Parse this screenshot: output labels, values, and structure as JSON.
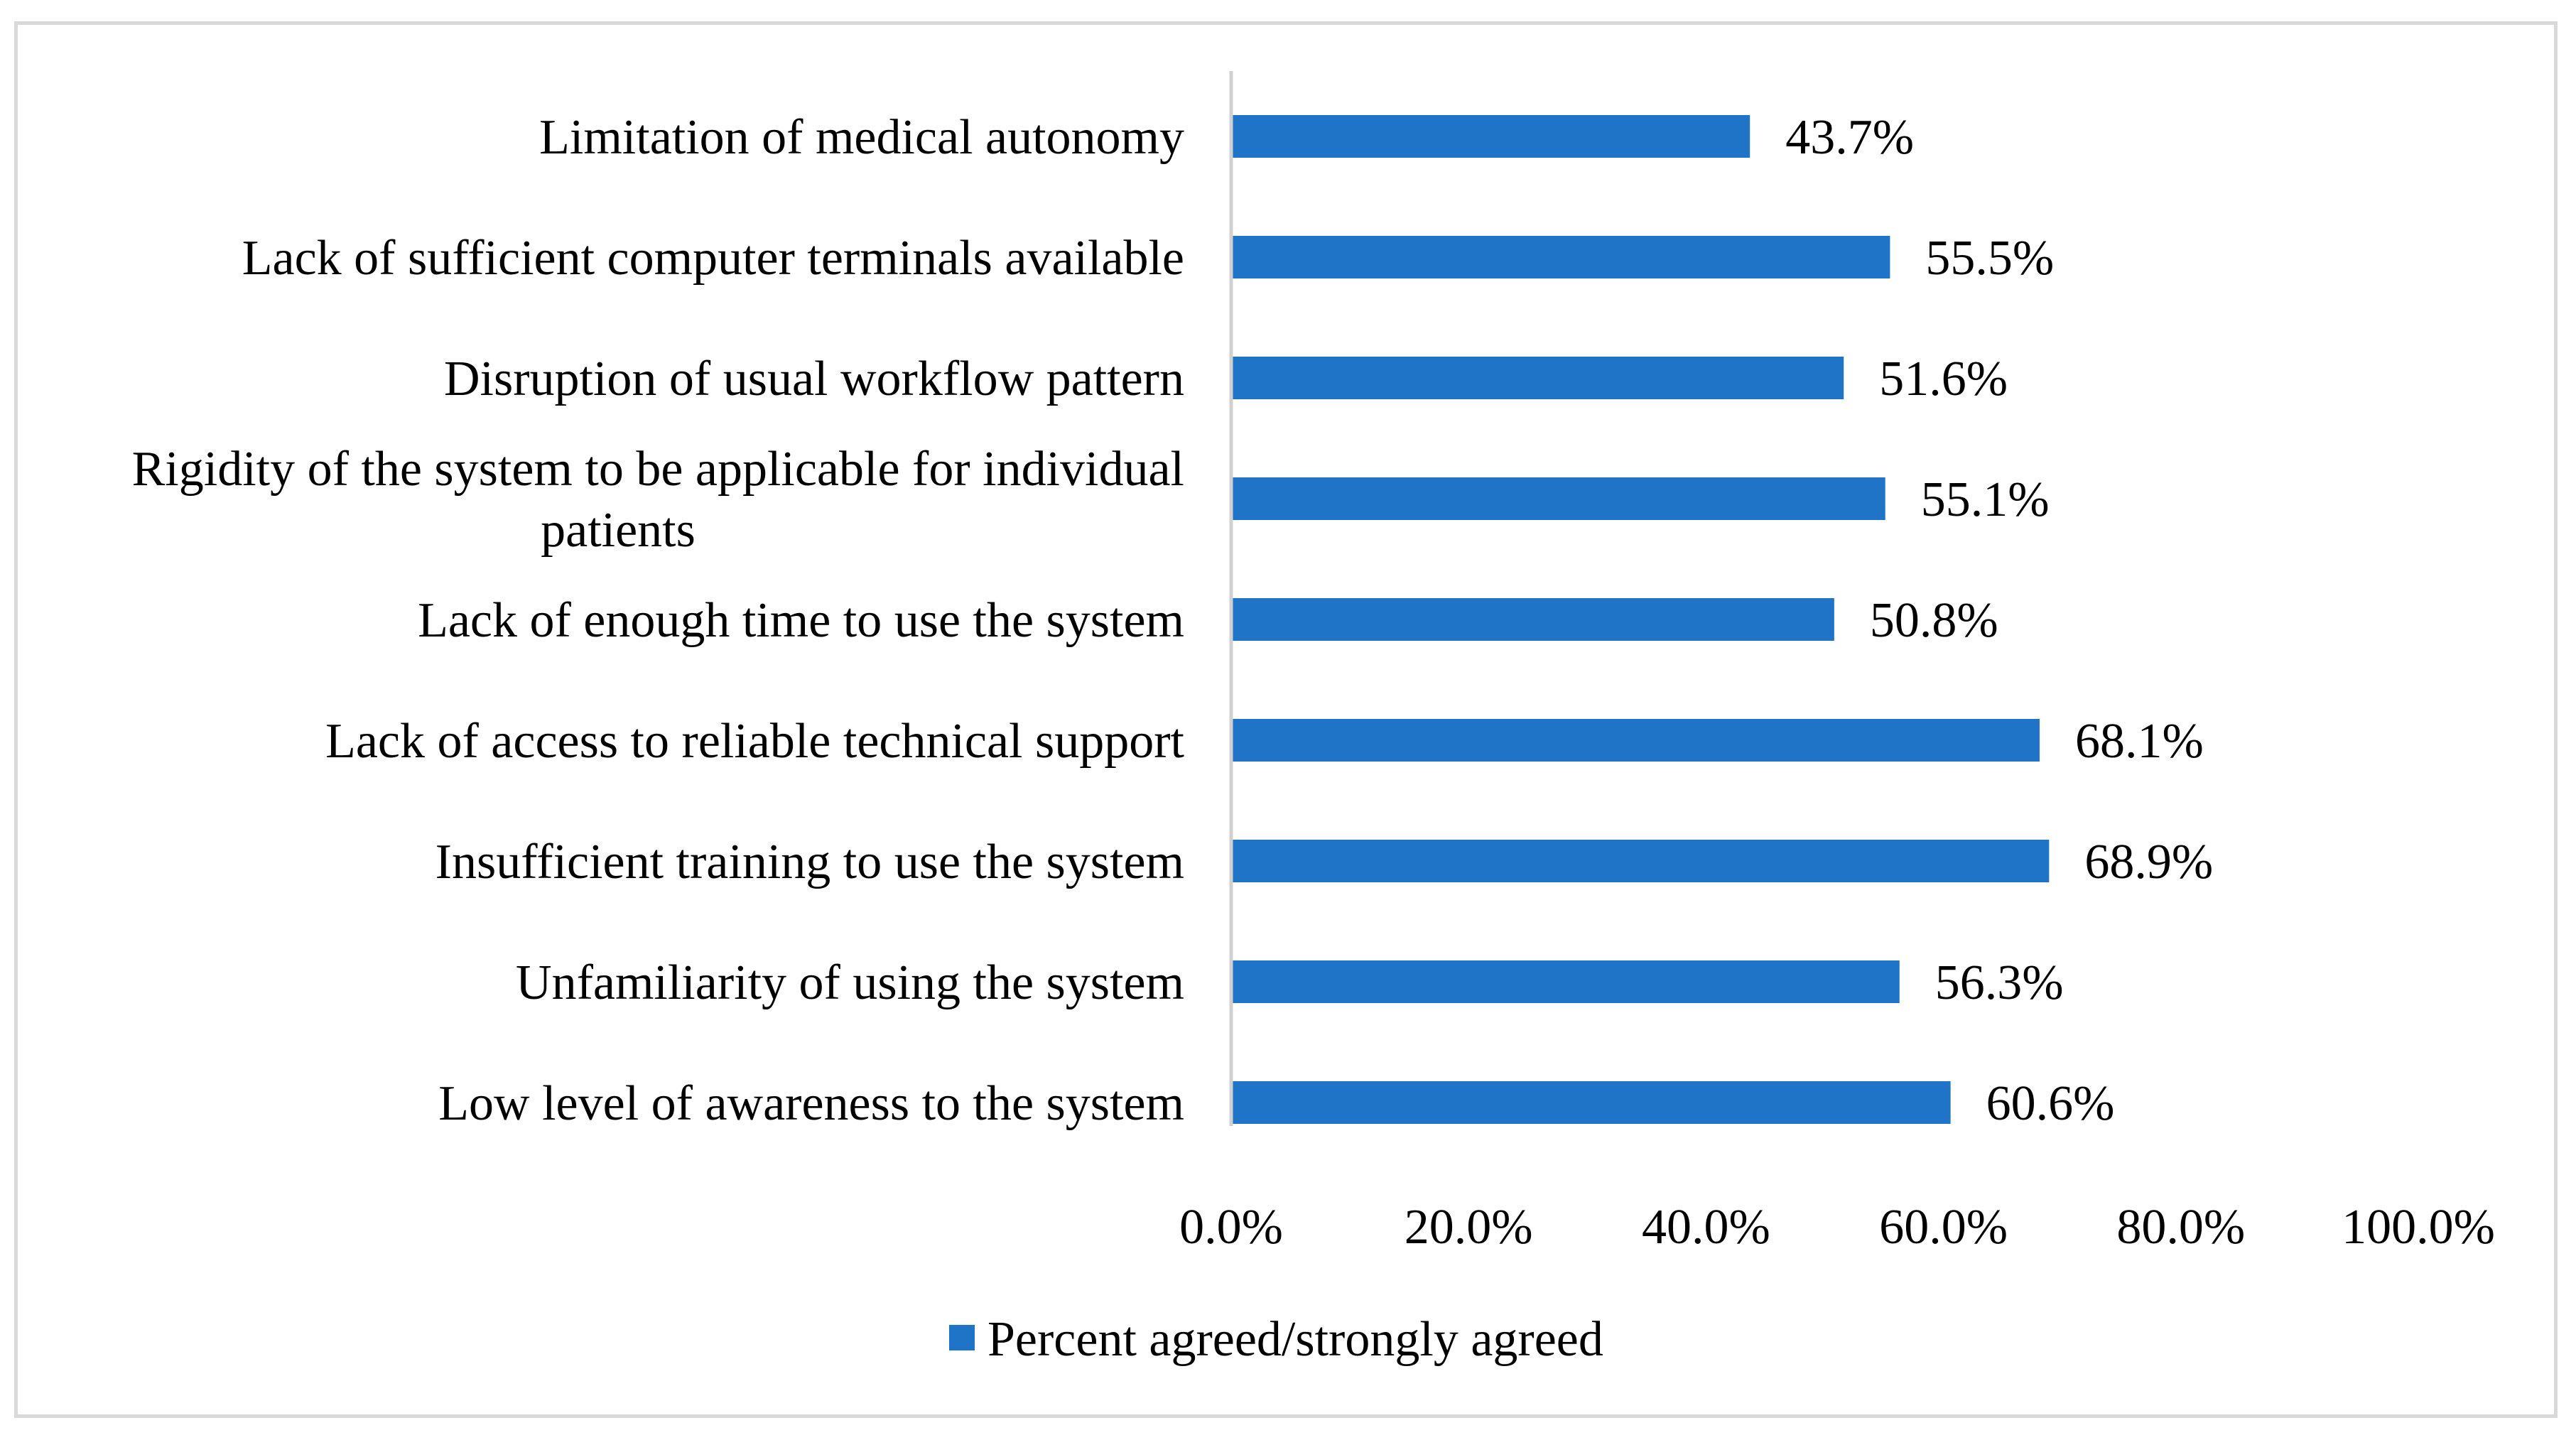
{
  "chart_data": {
    "type": "bar",
    "orientation": "horizontal",
    "title": "",
    "xlabel": "",
    "ylabel": "",
    "xlim": [
      0,
      100
    ],
    "tick_values": [
      0,
      20,
      40,
      60,
      80,
      100
    ],
    "tick_labels": [
      "0.0%",
      "20.0%",
      "40.0%",
      "60.0%",
      "80.0%",
      "100.0%"
    ],
    "grid": false,
    "legend_position": "bottom",
    "categories": [
      [
        "Limitation of medical autonomy"
      ],
      [
        "Lack of sufficient computer terminals available"
      ],
      [
        "Disruption of usual workflow pattern"
      ],
      [
        "Rigidity of the system to be applicable for individual",
        "patients"
      ],
      [
        "Lack of enough time to use the system"
      ],
      [
        "Lack of access to reliable technical support"
      ],
      [
        "Insufficient training to use the system"
      ],
      [
        "Unfamiliarity of using the system"
      ],
      [
        "Low level of awareness to the system"
      ]
    ],
    "series": [
      {
        "name": "Percent agreed/strongly agreed",
        "color": "#1f74c8",
        "values": [
          43.7,
          55.5,
          51.6,
          55.1,
          50.8,
          68.1,
          68.9,
          56.3,
          60.6
        ],
        "value_labels": [
          "43.7%",
          "55.5%",
          "51.6%",
          "55.1%",
          "50.8%",
          "68.1%",
          "68.9%",
          "56.3%",
          "60.6%"
        ]
      }
    ]
  }
}
